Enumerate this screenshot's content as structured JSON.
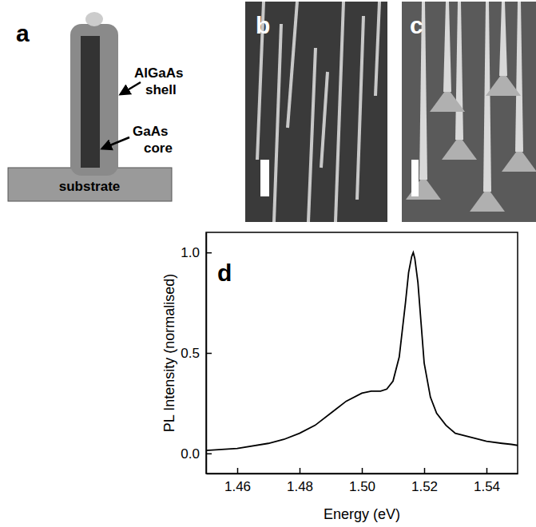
{
  "panels": {
    "a": {
      "label": "a",
      "shell_label": "AlGaAs shell",
      "core_label": "GaAs core",
      "substrate_label": "substrate"
    },
    "b": {
      "label": "b"
    },
    "c": {
      "label": "c"
    }
  },
  "chart_data": {
    "type": "line",
    "panel_label": "d",
    "xlabel": "Energy (eV)",
    "ylabel": "PL Intensity (normalised)",
    "color": "#000000",
    "xlim": [
      1.45,
      1.55
    ],
    "ylim": [
      -0.1,
      1.1
    ],
    "xticks": [
      1.46,
      1.48,
      {
        "value": 1.5,
        "label": "1.50"
      },
      1.52,
      1.54
    ],
    "yticks": [
      {
        "value": 0,
        "label": "0.0"
      },
      {
        "value": 0.5,
        "label": "0.5"
      },
      {
        "value": 1,
        "label": "1.0"
      }
    ],
    "x": [
      1.45,
      1.46,
      1.47,
      1.475,
      1.48,
      1.485,
      1.49,
      1.495,
      1.5,
      1.503,
      1.506,
      1.508,
      1.51,
      1.512,
      1.514,
      1.515,
      1.516,
      1.5165,
      1.517,
      1.518,
      1.519,
      1.52,
      1.522,
      1.524,
      1.527,
      1.53,
      1.535,
      1.54,
      1.545,
      1.548,
      1.55
    ],
    "values": [
      0.015,
      0.025,
      0.05,
      0.07,
      0.1,
      0.14,
      0.2,
      0.26,
      0.3,
      0.31,
      0.31,
      0.32,
      0.36,
      0.48,
      0.75,
      0.9,
      0.98,
      1.0,
      0.97,
      0.85,
      0.65,
      0.45,
      0.28,
      0.2,
      0.14,
      0.1,
      0.08,
      0.06,
      0.05,
      0.045,
      0.04
    ]
  }
}
